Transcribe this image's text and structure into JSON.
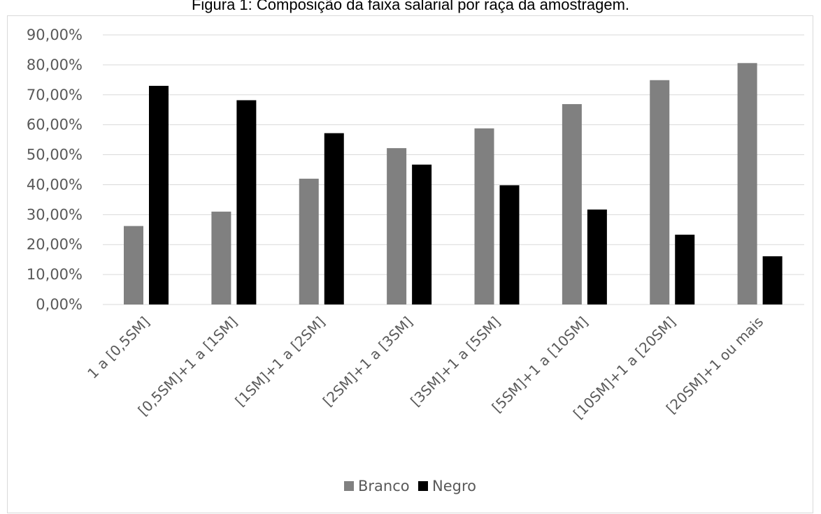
{
  "caption": "Figura 1: Composição da faixa salarial por raça da amostragem.",
  "chart_data": {
    "type": "bar",
    "title": "",
    "xlabel": "",
    "ylabel": "",
    "categories": [
      "1 a [0,5SM]",
      "[0,5SM]+1 a [1SM]",
      "[1SM]+1 a [2SM]",
      "[2SM]+1 a [3SM]",
      "[3SM]+1 a [5SM]",
      "[5SM]+1 a [10SM]",
      "[10SM]+1 a [20SM]",
      "[20SM]+1 ou mais"
    ],
    "series": [
      {
        "name": "Branco",
        "color": "#808080",
        "values": [
          26.2,
          31.0,
          42.0,
          52.2,
          58.8,
          66.9,
          74.9,
          80.6
        ]
      },
      {
        "name": "Negro",
        "color": "#000000",
        "values": [
          73.0,
          68.2,
          57.2,
          46.7,
          39.8,
          31.7,
          23.3,
          16.1
        ]
      }
    ],
    "ylim": [
      0,
      90
    ],
    "yticks": [
      0,
      10,
      20,
      30,
      40,
      50,
      60,
      70,
      80,
      90
    ],
    "ytick_labels": [
      "0,00%",
      "10,00%",
      "20,00%",
      "30,00%",
      "40,00%",
      "50,00%",
      "60,00%",
      "70,00%",
      "80,00%",
      "90,00%"
    ],
    "grid": true,
    "gridline_color": "#d9d9d9",
    "legend_position": "bottom-center"
  }
}
